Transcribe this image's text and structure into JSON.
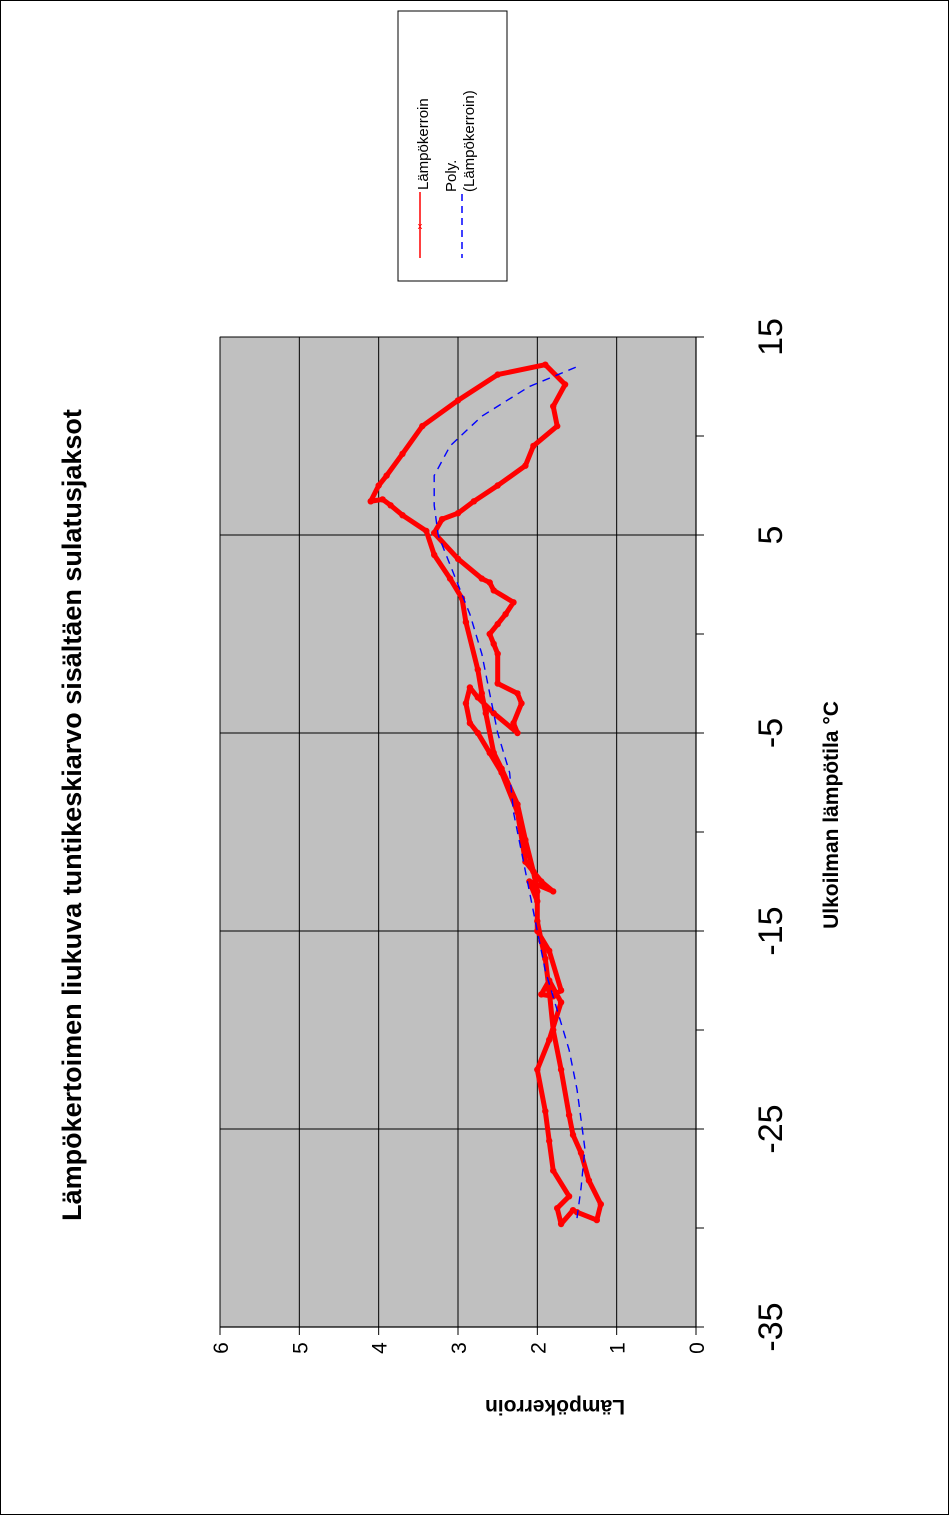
{
  "chart_data": {
    "type": "line",
    "title": "Lämpökertoimen liukuva tuntikeskiarvo sisältäen sulatusjaksot",
    "xlabel": "Ulkoilman lämpötila °C",
    "ylabel": "Lämpökerroin",
    "xlim": [
      -35,
      15
    ],
    "ylim": [
      0,
      6
    ],
    "x_ticks": [
      "-35",
      "-25",
      "-15",
      "-5",
      "5",
      "15"
    ],
    "y_ticks": [
      "0",
      "1",
      "2",
      "3",
      "4",
      "5",
      "6"
    ],
    "grid": true,
    "plot_background": "#c0c0c0",
    "legend_position": "top-right",
    "series": [
      {
        "name": "Lämpökerroin",
        "color": "#ff0000",
        "style": "solid-with-markers",
        "x": [
          -29.2,
          -29.6,
          -28.8,
          -27.6,
          -26.2,
          -25.3,
          -24.3,
          -22.0,
          -20.0,
          -18.0,
          -16.4,
          -15.5,
          -14.5,
          -13.0,
          -12.0,
          -10.4,
          -8.6,
          -6.8,
          -6.0,
          -4.0,
          -3.0,
          -1.8,
          0.6,
          1.8,
          2.8,
          4.0,
          5.2,
          6.0,
          6.5,
          6.8,
          6.7,
          7.5,
          8.0,
          9.1,
          10.5,
          11.8,
          13.1,
          13.6,
          12.6,
          11.5,
          10.5,
          9.5,
          8.5,
          7.5,
          6.7,
          6.1,
          5.8,
          5.1,
          3.8,
          2.8,
          2.6,
          2.2,
          1.6,
          1.0,
          0.5,
          0.0,
          -0.5,
          -1.0,
          -2.5,
          -3.0,
          -3.5,
          -4.5,
          -5.0,
          -4.0,
          -3.2,
          -2.7,
          -3.5,
          -4.5,
          -5.0,
          -6.0,
          -7.0,
          -9.0,
          -11.5,
          -12.5,
          -13.0,
          -12.5,
          -13.5,
          -15.0,
          -16.0,
          -18.0,
          -18.3,
          -18.2,
          -17.5,
          -18.6,
          -20.5,
          -22.0,
          -24.1,
          -25.6,
          -27.1,
          -28.4,
          -29.0,
          -29.8,
          -29.1
        ],
        "y": [
          1.5,
          1.25,
          1.2,
          1.35,
          1.45,
          1.55,
          1.6,
          1.7,
          1.8,
          1.85,
          1.9,
          1.95,
          2.0,
          2.0,
          2.05,
          2.15,
          2.25,
          2.45,
          2.55,
          2.65,
          2.7,
          2.75,
          2.9,
          2.95,
          3.1,
          3.3,
          3.4,
          3.7,
          3.85,
          3.95,
          4.1,
          4.0,
          3.9,
          3.7,
          3.45,
          3.0,
          2.5,
          1.9,
          1.65,
          1.8,
          1.75,
          2.05,
          2.15,
          2.5,
          2.8,
          3.0,
          3.2,
          3.3,
          3.0,
          2.7,
          2.6,
          2.55,
          2.3,
          2.4,
          2.5,
          2.6,
          2.55,
          2.5,
          2.5,
          2.25,
          2.2,
          2.3,
          2.25,
          2.55,
          2.75,
          2.85,
          2.9,
          2.85,
          2.75,
          2.6,
          2.45,
          2.25,
          2.15,
          1.95,
          1.8,
          2.1,
          2.0,
          2.0,
          1.85,
          1.7,
          1.8,
          1.95,
          1.85,
          1.7,
          1.85,
          2.0,
          1.9,
          1.85,
          1.8,
          1.6,
          1.75,
          1.7,
          1.55
        ]
      },
      {
        "name": "Poly. (Lämpökerroin)",
        "color": "#0000ff",
        "style": "dashed",
        "x": [
          -29.5,
          -28.0,
          -26.0,
          -24.5,
          -23.0,
          -21.0,
          -19.0,
          -17.0,
          -15.0,
          -13.0,
          -11.0,
          -9.0,
          -7.0,
          -5.0,
          -3.0,
          -1.0,
          1.0,
          3.0,
          5.0,
          6.5,
          8.0,
          9.5,
          11.0,
          12.5,
          13.5
        ],
        "y": [
          1.5,
          1.45,
          1.4,
          1.45,
          1.5,
          1.6,
          1.75,
          1.9,
          2.0,
          2.1,
          2.2,
          2.3,
          2.35,
          2.5,
          2.6,
          2.7,
          2.85,
          3.05,
          3.25,
          3.3,
          3.3,
          3.1,
          2.7,
          2.1,
          1.5
        ]
      }
    ]
  },
  "legend": {
    "item1_label": "Lämpökerroin",
    "item2_label": "Poly. (Lämpökerroin)"
  }
}
